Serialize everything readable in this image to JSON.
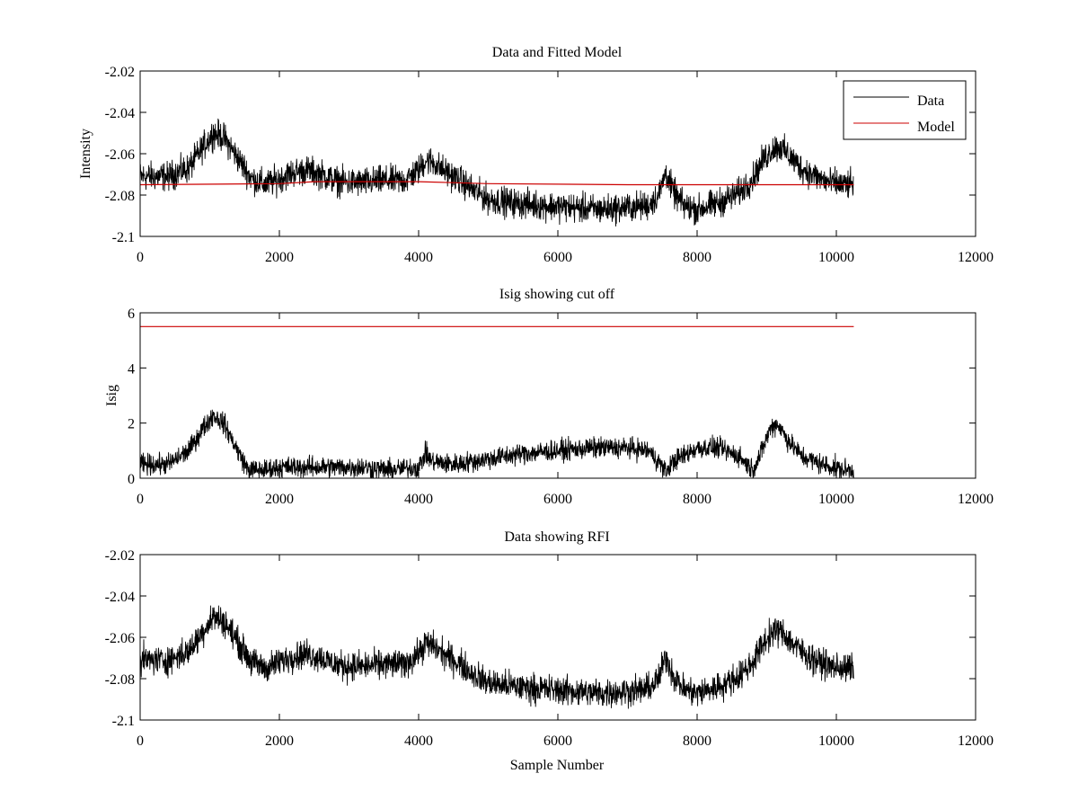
{
  "figure": {
    "background": "#ffffff"
  },
  "chart_data": [
    {
      "type": "line",
      "title": "Data and Fitted Model",
      "xlabel": "",
      "ylabel": "Intensity",
      "xlim": [
        0,
        12000
      ],
      "ylim": [
        -2.1,
        -2.02
      ],
      "xticks": [
        0,
        2000,
        4000,
        6000,
        8000,
        10000,
        12000
      ],
      "yticks": [
        -2.1,
        -2.08,
        -2.06,
        -2.04,
        -2.02
      ],
      "xtick_labels": [
        "0",
        "2000",
        "4000",
        "6000",
        "8000",
        "10000",
        "12000"
      ],
      "ytick_labels": [
        "-2.1",
        "-2.08",
        "-2.06",
        "-2.04",
        "-2.02"
      ],
      "grid": false,
      "legend": {
        "placement": "top-right",
        "entries": [
          "Data",
          "Model"
        ]
      },
      "series": [
        {
          "name": "Data",
          "color": "#000000",
          "noise": 0.0065,
          "x": [
            0,
            400,
            700,
            900,
            1050,
            1200,
            1400,
            1600,
            1800,
            2000,
            2200,
            2400,
            2600,
            2800,
            3000,
            3200,
            3500,
            3800,
            4000,
            4100,
            4200,
            4400,
            4600,
            4800,
            5000,
            5400,
            5800,
            6200,
            6600,
            7000,
            7300,
            7450,
            7550,
            7650,
            7800,
            8000,
            8300,
            8600,
            8800,
            8950,
            9100,
            9200,
            9350,
            9500,
            9700,
            9900,
            10100,
            10250
          ],
          "y": [
            -2.071,
            -2.071,
            -2.067,
            -2.057,
            -2.05,
            -2.052,
            -2.062,
            -2.072,
            -2.075,
            -2.072,
            -2.069,
            -2.068,
            -2.07,
            -2.073,
            -2.074,
            -2.074,
            -2.073,
            -2.073,
            -2.068,
            -2.063,
            -2.064,
            -2.069,
            -2.073,
            -2.078,
            -2.082,
            -2.084,
            -2.085,
            -2.086,
            -2.087,
            -2.086,
            -2.085,
            -2.08,
            -2.069,
            -2.078,
            -2.085,
            -2.087,
            -2.084,
            -2.079,
            -2.072,
            -2.063,
            -2.057,
            -2.057,
            -2.062,
            -2.067,
            -2.071,
            -2.074,
            -2.075,
            -2.075
          ]
        },
        {
          "name": "Model",
          "color": "#cc0000",
          "noise": 0,
          "x": [
            0,
            2000,
            2500,
            4000,
            5000,
            7000,
            10250
          ],
          "y": [
            -2.075,
            -2.0745,
            -2.0735,
            -2.0735,
            -2.0745,
            -2.075,
            -2.075
          ]
        }
      ]
    },
    {
      "type": "line",
      "title": "Isig showing cut off",
      "xlabel": "",
      "ylabel": "Isig",
      "xlim": [
        0,
        12000
      ],
      "ylim": [
        0,
        6
      ],
      "xticks": [
        0,
        2000,
        4000,
        6000,
        8000,
        10000,
        12000
      ],
      "yticks": [
        0,
        2,
        4,
        6
      ],
      "xtick_labels": [
        "0",
        "2000",
        "4000",
        "6000",
        "8000",
        "10000",
        "12000"
      ],
      "ytick_labels": [
        "0",
        "2",
        "4",
        "6"
      ],
      "grid": false,
      "series": [
        {
          "color": "#000000",
          "noise": 0.35,
          "x": [
            0,
            400,
            700,
            900,
            1050,
            1200,
            1400,
            1550,
            1800,
            2000,
            2400,
            2800,
            3200,
            3600,
            4000,
            4100,
            4200,
            4500,
            5000,
            5500,
            6000,
            6500,
            7000,
            7300,
            7450,
            7550,
            7650,
            8000,
            8300,
            8600,
            8800,
            8900,
            9050,
            9150,
            9300,
            9500,
            9800,
            10100,
            10250
          ],
          "y": [
            0.5,
            0.5,
            1.0,
            1.8,
            2.3,
            2.0,
            1.0,
            0.3,
            0.3,
            0.4,
            0.4,
            0.4,
            0.4,
            0.3,
            0.4,
            0.9,
            0.6,
            0.5,
            0.7,
            0.9,
            1.0,
            1.1,
            1.1,
            1.0,
            0.6,
            0.2,
            0.6,
            1.1,
            1.1,
            0.8,
            0.3,
            0.8,
            1.8,
            2.0,
            1.4,
            0.8,
            0.5,
            0.3,
            0.3
          ]
        },
        {
          "color": "#cc0000",
          "noise": 0,
          "x": [
            0,
            10250
          ],
          "y": [
            5.5,
            5.5
          ]
        }
      ]
    },
    {
      "type": "line",
      "title": "Data showing RFI",
      "xlabel": "Sample Number",
      "ylabel": "",
      "xlim": [
        0,
        12000
      ],
      "ylim": [
        -2.1,
        -2.02
      ],
      "xticks": [
        0,
        2000,
        4000,
        6000,
        8000,
        10000,
        12000
      ],
      "yticks": [
        -2.1,
        -2.08,
        -2.06,
        -2.04,
        -2.02
      ],
      "xtick_labels": [
        "0",
        "2000",
        "4000",
        "6000",
        "8000",
        "10000",
        "12000"
      ],
      "ytick_labels": [
        "-2.1",
        "-2.08",
        "-2.06",
        "-2.04",
        "-2.02"
      ],
      "grid": false,
      "series": [
        {
          "color": "#000000",
          "noise": 0.0065,
          "x": [
            0,
            400,
            700,
            900,
            1050,
            1200,
            1400,
            1600,
            1800,
            2000,
            2200,
            2400,
            2600,
            2800,
            3000,
            3200,
            3500,
            3800,
            4000,
            4100,
            4200,
            4400,
            4600,
            4800,
            5000,
            5400,
            5800,
            6200,
            6600,
            7000,
            7300,
            7450,
            7550,
            7650,
            7800,
            8000,
            8300,
            8600,
            8800,
            8950,
            9100,
            9200,
            9350,
            9500,
            9700,
            9900,
            10100,
            10250
          ],
          "y": [
            -2.071,
            -2.071,
            -2.067,
            -2.057,
            -2.05,
            -2.052,
            -2.062,
            -2.072,
            -2.075,
            -2.072,
            -2.069,
            -2.068,
            -2.07,
            -2.073,
            -2.074,
            -2.074,
            -2.073,
            -2.073,
            -2.068,
            -2.063,
            -2.064,
            -2.069,
            -2.073,
            -2.078,
            -2.082,
            -2.084,
            -2.085,
            -2.086,
            -2.087,
            -2.086,
            -2.085,
            -2.08,
            -2.069,
            -2.078,
            -2.085,
            -2.087,
            -2.084,
            -2.079,
            -2.072,
            -2.063,
            -2.057,
            -2.057,
            -2.062,
            -2.067,
            -2.071,
            -2.074,
            -2.075,
            -2.075
          ]
        }
      ]
    }
  ]
}
